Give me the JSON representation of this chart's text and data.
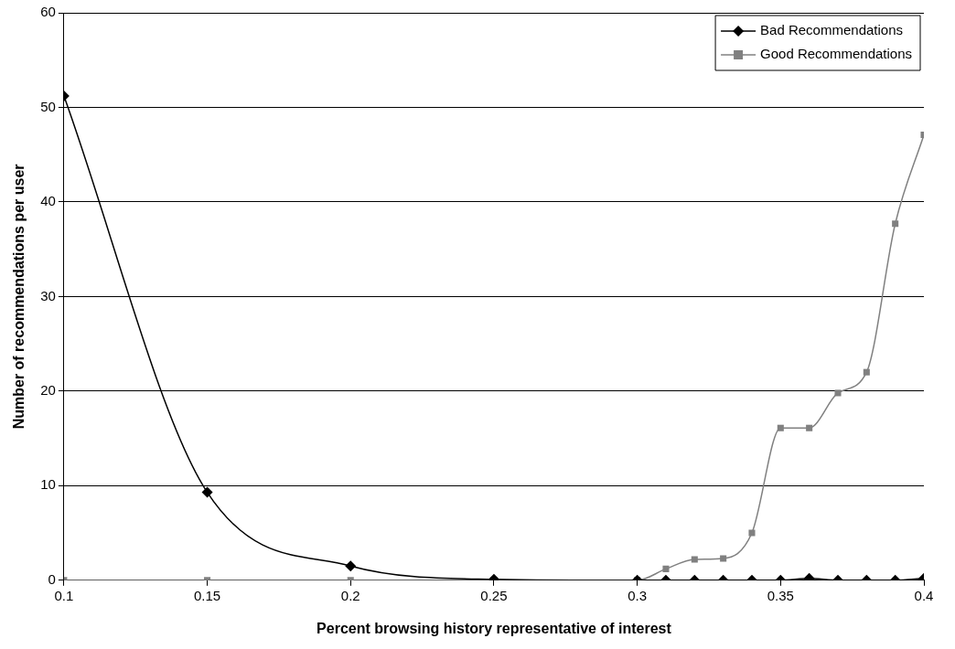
{
  "chart_data": {
    "type": "line",
    "xlabel": "Percent browsing history representative of interest",
    "ylabel": "Number of recommendations per user",
    "x": [
      0.1,
      0.15,
      0.2,
      0.25,
      0.3,
      0.31,
      0.32,
      0.33,
      0.34,
      0.35,
      0.36,
      0.37,
      0.38,
      0.39,
      0.4
    ],
    "series": [
      {
        "name": "Bad Recommendations",
        "color": "#000000",
        "marker": "diamond",
        "values": [
          51.2,
          9.3,
          1.5,
          0.1,
          0,
          0,
          0,
          0,
          0,
          0,
          0.2,
          0,
          0,
          0,
          0.2
        ]
      },
      {
        "name": "Good Recommendations",
        "color": "#808080",
        "marker": "square",
        "values": [
          0,
          0,
          0,
          0,
          0,
          1.2,
          2.2,
          2.3,
          5,
          16.1,
          16.1,
          19.8,
          22,
          37.7,
          47.1
        ]
      }
    ],
    "xlim": [
      0.1,
      0.4
    ],
    "xticks": [
      0.1,
      0.15,
      0.2,
      0.25,
      0.3,
      0.35,
      0.4
    ],
    "ylim": [
      0,
      60
    ],
    "yticks": [
      0,
      10,
      20,
      30,
      40,
      50,
      60
    ],
    "grid": "y",
    "legend": "top right",
    "line_style": "solid"
  }
}
